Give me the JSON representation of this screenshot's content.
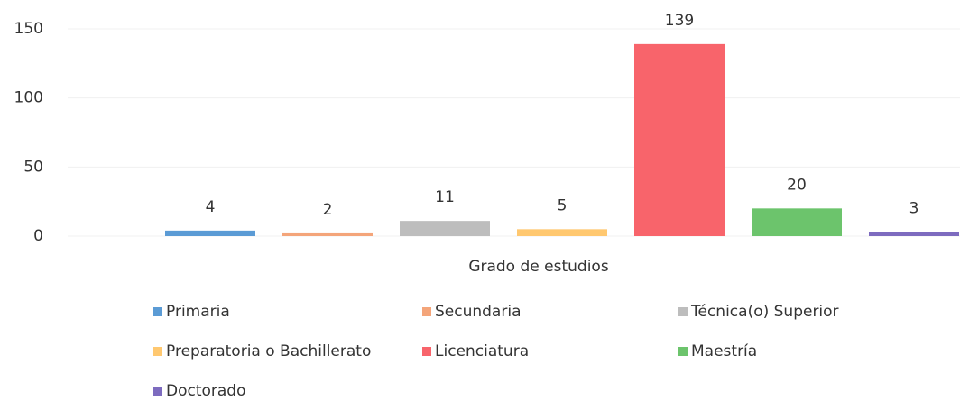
{
  "chart_data": {
    "type": "bar",
    "categories": [
      "Grado de estudios"
    ],
    "series": [
      {
        "name": "Primaria",
        "color": "#5b9bd5",
        "values": [
          4
        ]
      },
      {
        "name": "Secundaria",
        "color": "#f4a57a",
        "values": [
          2
        ]
      },
      {
        "name": "Técnica(o) Superior",
        "color": "#bdbdbd",
        "values": [
          11
        ]
      },
      {
        "name": "Preparatoria o Bachillerato",
        "color": "#ffc870",
        "values": [
          5
        ]
      },
      {
        "name": "Licenciatura",
        "color": "#f8646b",
        "values": [
          139
        ]
      },
      {
        "name": "Maestría",
        "color": "#6cc46c",
        "values": [
          20
        ]
      },
      {
        "name": "Doctorado",
        "color": "#7d6bbf",
        "values": [
          3
        ]
      }
    ],
    "ylim": [
      0,
      150
    ],
    "yticks": [
      0,
      50,
      100,
      150
    ],
    "grid": true,
    "legend": "bottom"
  }
}
